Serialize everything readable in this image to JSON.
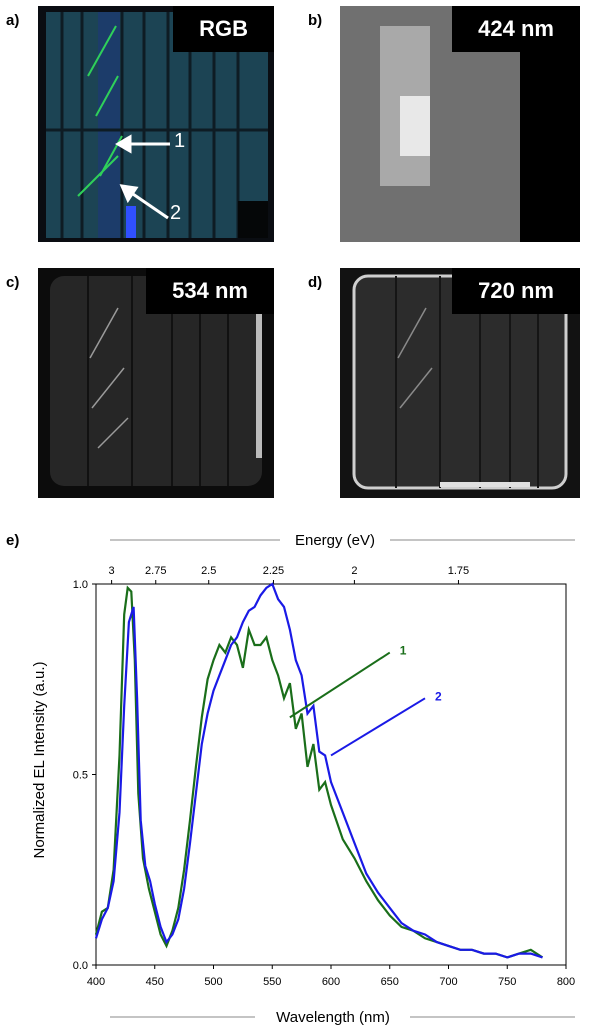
{
  "figure": {
    "panels": [
      {
        "letter": "a)",
        "tag": "RGB"
      },
      {
        "letter": "b)",
        "tag": "424 nm"
      },
      {
        "letter": "c)",
        "tag": "534 nm"
      },
      {
        "letter": "d)",
        "tag": "720 nm"
      }
    ],
    "arrows": [
      "1",
      "2"
    ],
    "spectrum_letter": "e)"
  },
  "chart_data": {
    "type": "line",
    "xlabel": "Wavelength (nm)",
    "x2label": "Energy (eV)",
    "ylabel": "Normalized EL Intensity (a.u.)",
    "xlim": [
      400,
      800
    ],
    "ylim": [
      0,
      1.0
    ],
    "xticks": [
      "400",
      "450",
      "500",
      "550",
      "600",
      "650",
      "700",
      "750",
      "800"
    ],
    "yticks": [
      "0.0",
      "0.5",
      "1.0"
    ],
    "x2ticks": [
      {
        "label": "3",
        "eV": 3.0
      },
      {
        "label": "2.75",
        "eV": 2.75
      },
      {
        "label": "2.5",
        "eV": 2.5
      },
      {
        "label": "2.25",
        "eV": 2.25
      },
      {
        "label": "2",
        "eV": 2.0
      },
      {
        "label": "1.75",
        "eV": 1.75
      }
    ],
    "series": [
      {
        "name": "1",
        "color": "#1a6e1a",
        "x": [
          400,
          405,
          410,
          415,
          420,
          424,
          427,
          430,
          433,
          436,
          440,
          445,
          450,
          455,
          460,
          465,
          470,
          475,
          480,
          485,
          490,
          495,
          500,
          505,
          510,
          515,
          520,
          525,
          530,
          535,
          540,
          545,
          550,
          555,
          560,
          565,
          570,
          575,
          580,
          585,
          590,
          595,
          600,
          610,
          620,
          630,
          640,
          650,
          660,
          670,
          680,
          690,
          700,
          710,
          720,
          730,
          740,
          750,
          760,
          770,
          780
        ],
        "y": [
          0.08,
          0.14,
          0.15,
          0.25,
          0.55,
          0.92,
          0.99,
          0.98,
          0.8,
          0.45,
          0.28,
          0.2,
          0.14,
          0.08,
          0.05,
          0.09,
          0.15,
          0.25,
          0.38,
          0.52,
          0.65,
          0.75,
          0.8,
          0.84,
          0.82,
          0.86,
          0.84,
          0.78,
          0.88,
          0.84,
          0.84,
          0.86,
          0.8,
          0.76,
          0.7,
          0.74,
          0.62,
          0.66,
          0.52,
          0.58,
          0.46,
          0.48,
          0.42,
          0.33,
          0.28,
          0.22,
          0.17,
          0.13,
          0.1,
          0.09,
          0.07,
          0.06,
          0.05,
          0.04,
          0.04,
          0.03,
          0.03,
          0.02,
          0.03,
          0.04,
          0.02
        ]
      },
      {
        "name": "2",
        "color": "#1a1ae6",
        "x": [
          400,
          405,
          410,
          415,
          420,
          424,
          428,
          432,
          435,
          438,
          442,
          446,
          450,
          455,
          460,
          465,
          470,
          475,
          480,
          485,
          490,
          495,
          500,
          505,
          510,
          515,
          520,
          525,
          530,
          535,
          540,
          545,
          550,
          555,
          560,
          565,
          570,
          575,
          580,
          585,
          590,
          595,
          600,
          610,
          620,
          630,
          640,
          650,
          660,
          670,
          680,
          690,
          700,
          710,
          720,
          730,
          740,
          750,
          760,
          770,
          780
        ],
        "y": [
          0.07,
          0.12,
          0.15,
          0.22,
          0.4,
          0.68,
          0.9,
          0.94,
          0.7,
          0.38,
          0.26,
          0.22,
          0.16,
          0.1,
          0.06,
          0.08,
          0.12,
          0.2,
          0.32,
          0.45,
          0.58,
          0.66,
          0.72,
          0.76,
          0.8,
          0.84,
          0.86,
          0.9,
          0.93,
          0.94,
          0.97,
          0.99,
          1.0,
          0.96,
          0.94,
          0.88,
          0.8,
          0.76,
          0.66,
          0.68,
          0.56,
          0.55,
          0.48,
          0.4,
          0.32,
          0.24,
          0.19,
          0.15,
          0.11,
          0.09,
          0.08,
          0.06,
          0.05,
          0.04,
          0.04,
          0.03,
          0.03,
          0.02,
          0.03,
          0.03,
          0.02
        ]
      }
    ]
  }
}
